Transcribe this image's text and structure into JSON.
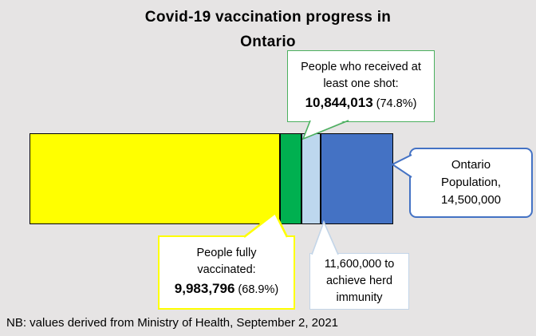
{
  "title": {
    "lines": [
      "Covid-19 vaccination progress in",
      "Ontario"
    ]
  },
  "note": "NB: values derived from Ministry of Health, September 2, 2021",
  "callouts": {
    "one_shot": {
      "lines": [
        "People who received at",
        "least one shot:"
      ],
      "value": "10,844,013",
      "pct": "(74.8%)"
    },
    "fully_vaccinated": {
      "lines": [
        "People fully",
        "vaccinated:"
      ],
      "value": "9,983,796",
      "pct": "(68.9%)"
    },
    "herd_immunity": {
      "lines": [
        "11,600,000 to",
        "achieve herd",
        "immunity"
      ]
    },
    "population": {
      "lines": [
        "Ontario",
        "Population,",
        "14,500,000"
      ]
    }
  },
  "colors": {
    "background": "#e6e4e4",
    "bar-outline": "#000000",
    "border-green": "#4bb05f",
    "border-yellow": "#ffff00",
    "border-herd": "#c3d5e8",
    "border-blue": "#4472c4"
  },
  "chart_data": {
    "type": "bar",
    "orientation": "horizontal-stacked",
    "title": "Covid-19 vaccination progress in Ontario",
    "total": 14500000,
    "segments": [
      {
        "name": "People fully vaccinated",
        "cumulative": 9983796,
        "value": 9983796,
        "pct": "68.9%",
        "color": "#ffff00"
      },
      {
        "name": "People who received at least one shot",
        "cumulative": 10844013,
        "value": 10844013,
        "pct": "74.8%",
        "color": "#00b050"
      },
      {
        "name": "Threshold to achieve herd immunity",
        "cumulative": 11600000,
        "value": 11600000,
        "pct": "80%",
        "color": "#bdd7ee"
      },
      {
        "name": "Ontario Population",
        "cumulative": 14500000,
        "value": 14500000,
        "pct": "100%",
        "color": "#4472c4"
      }
    ],
    "legend": false,
    "grid": false,
    "axes": false,
    "note": "NB: values derived from Ministry of Health, September 2, 2021"
  }
}
